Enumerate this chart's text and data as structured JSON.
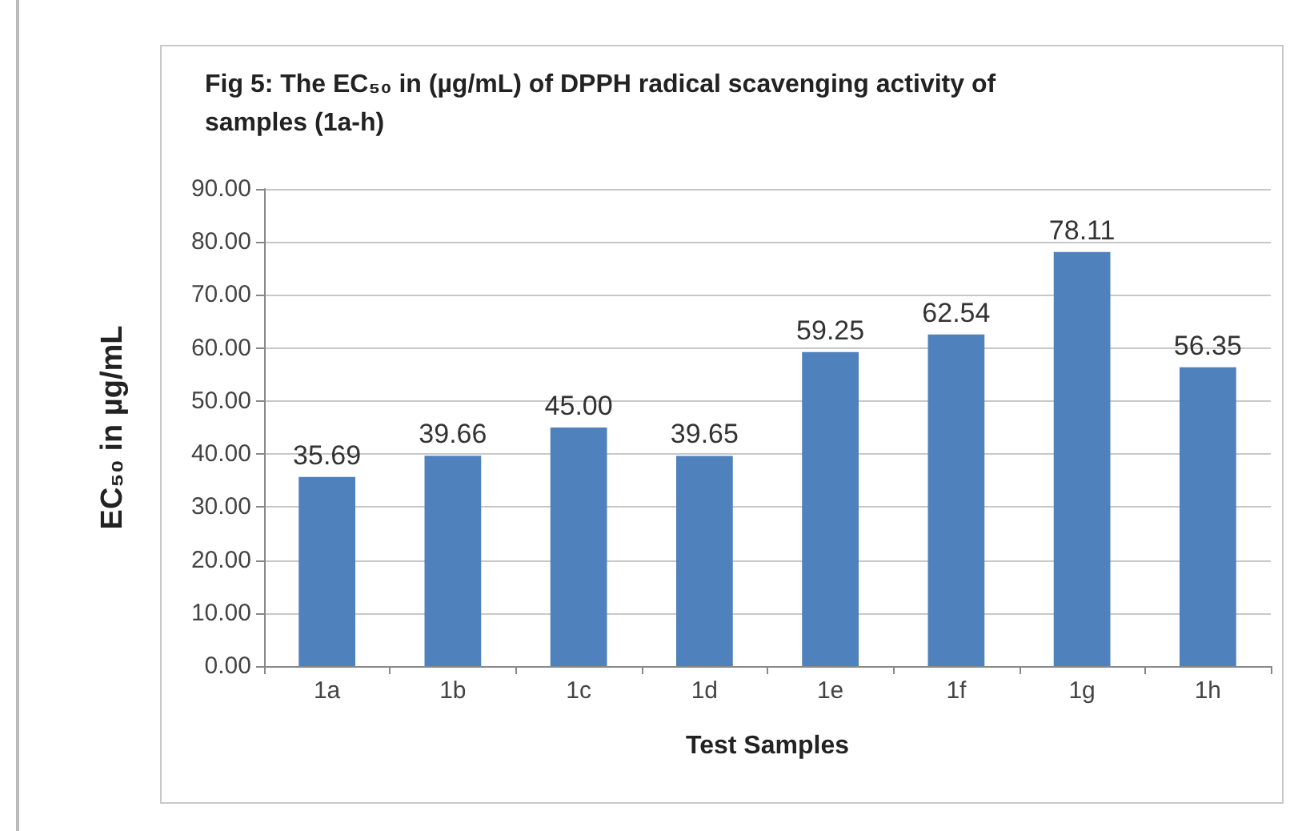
{
  "chart_data": {
    "type": "bar",
    "title": "Fig 5: The EC₅₀ in (µg/mL) of DPPH radical scavenging activity of samples (1a-h)",
    "xlabel": "Test Samples",
    "ylabel": "EC₅₀ in µg/mL",
    "categories": [
      "1a",
      "1b",
      "1c",
      "1d",
      "1e",
      "1f",
      "1g",
      "1h"
    ],
    "values": [
      35.69,
      39.66,
      45.0,
      39.65,
      59.25,
      62.54,
      78.11,
      56.35
    ],
    "value_labels": [
      "35.69",
      "39.66",
      "45.00",
      "39.65",
      "59.25",
      "62.54",
      "78.11",
      "56.35"
    ],
    "color": "#4f81bd",
    "ylim": [
      0,
      90
    ],
    "yticks": [
      {
        "value": 0,
        "label": "0.00"
      },
      {
        "value": 10,
        "label": "10.00"
      },
      {
        "value": 20,
        "label": "20.00"
      },
      {
        "value": 30,
        "label": "30.00"
      },
      {
        "value": 40,
        "label": "40.00"
      },
      {
        "value": 50,
        "label": "50.00"
      },
      {
        "value": 60,
        "label": "60.00"
      },
      {
        "value": 70,
        "label": "70.00"
      },
      {
        "value": 80,
        "label": "80.00"
      },
      {
        "value": 90,
        "label": "90.00"
      }
    ],
    "grid": "y"
  }
}
